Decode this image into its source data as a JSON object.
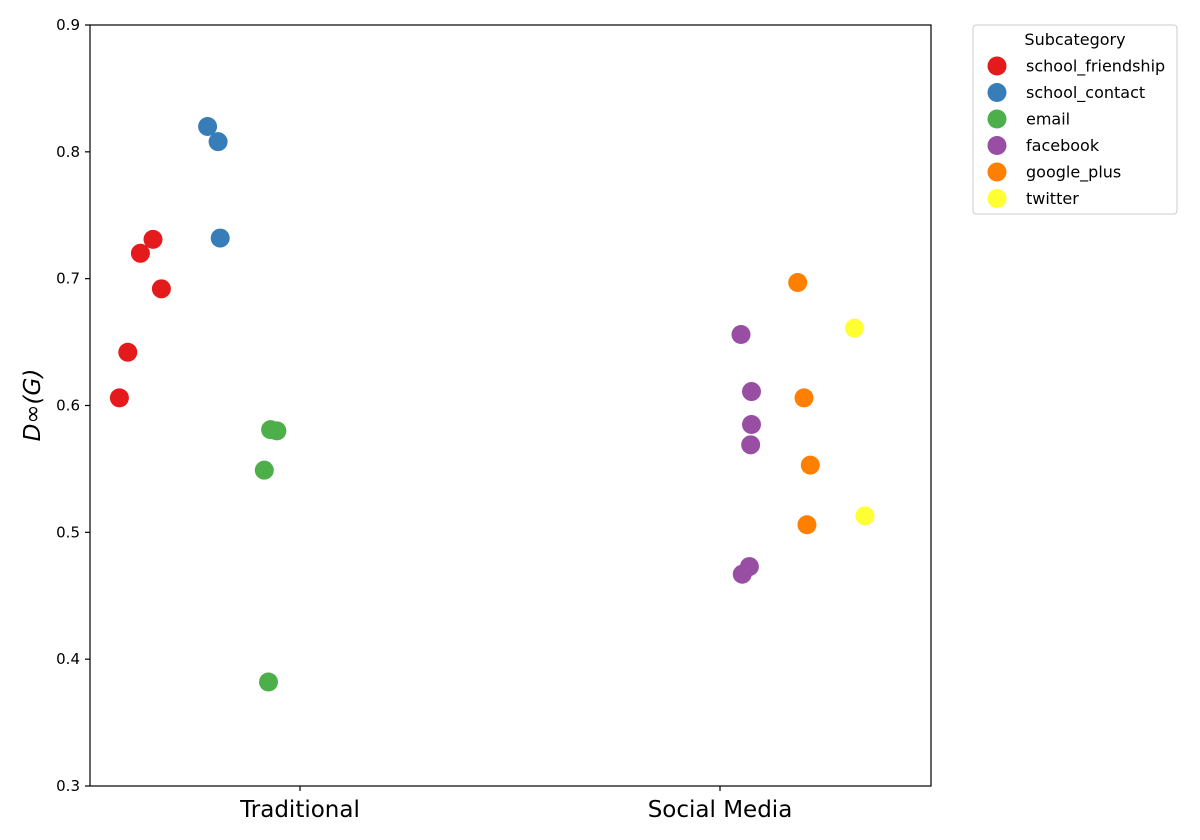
{
  "chart_data": {
    "type": "scatter",
    "title": "",
    "xlabel": "",
    "ylabel": "D∞(G)",
    "ylim": [
      0.3,
      0.9
    ],
    "yticks": [
      0.3,
      0.4,
      0.5,
      0.6,
      0.7,
      0.8,
      0.9
    ],
    "categories": [
      "Traditional",
      "Social Media"
    ],
    "grid": false,
    "legend": {
      "title": "Subcategory",
      "placement": "outside-top-right"
    },
    "series": [
      {
        "name": "school_friendship",
        "category": "Traditional",
        "color": "#e41a1c",
        "points": [
          {
            "jitter": -0.35,
            "y": 0.731
          },
          {
            "jitter": -0.38,
            "y": 0.72
          },
          {
            "jitter": -0.33,
            "y": 0.692
          },
          {
            "jitter": -0.41,
            "y": 0.642
          },
          {
            "jitter": -0.43,
            "y": 0.606
          }
        ]
      },
      {
        "name": "school_contact",
        "category": "Traditional",
        "color": "#377eb8",
        "points": [
          {
            "jitter": -0.22,
            "y": 0.82
          },
          {
            "jitter": -0.195,
            "y": 0.808
          },
          {
            "jitter": -0.19,
            "y": 0.732
          }
        ]
      },
      {
        "name": "email",
        "category": "Traditional",
        "color": "#4daf4a",
        "points": [
          {
            "jitter": -0.07,
            "y": 0.581
          },
          {
            "jitter": -0.055,
            "y": 0.58
          },
          {
            "jitter": -0.085,
            "y": 0.549
          },
          {
            "jitter": -0.075,
            "y": 0.382
          }
        ]
      },
      {
        "name": "facebook",
        "category": "Social Media",
        "color": "#984ea3",
        "points": [
          {
            "jitter": 0.05,
            "y": 0.656
          },
          {
            "jitter": 0.075,
            "y": 0.611
          },
          {
            "jitter": 0.075,
            "y": 0.585
          },
          {
            "jitter": 0.073,
            "y": 0.569
          },
          {
            "jitter": 0.07,
            "y": 0.473
          },
          {
            "jitter": 0.053,
            "y": 0.467
          }
        ]
      },
      {
        "name": "google_plus",
        "category": "Social Media",
        "color": "#ff7f00",
        "points": [
          {
            "jitter": 0.185,
            "y": 0.697
          },
          {
            "jitter": 0.2,
            "y": 0.606
          },
          {
            "jitter": 0.215,
            "y": 0.553
          },
          {
            "jitter": 0.207,
            "y": 0.506
          }
        ]
      },
      {
        "name": "twitter",
        "category": "Social Media",
        "color": "#ffff33",
        "points": [
          {
            "jitter": 0.32,
            "y": 0.661
          },
          {
            "jitter": 0.345,
            "y": 0.513
          }
        ]
      }
    ]
  }
}
